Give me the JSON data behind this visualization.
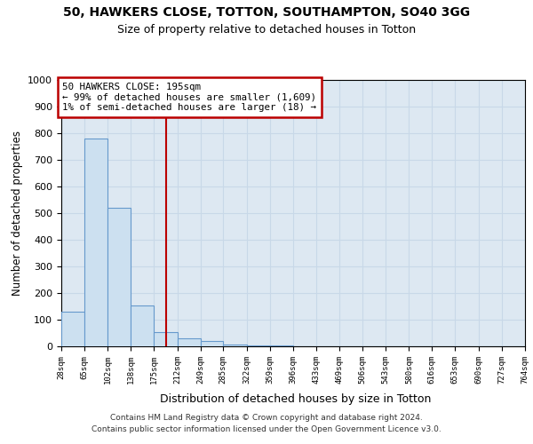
{
  "title1": "50, HAWKERS CLOSE, TOTTON, SOUTHAMPTON, SO40 3GG",
  "title2": "Size of property relative to detached houses in Totton",
  "xlabel": "Distribution of detached houses by size in Totton",
  "ylabel": "Number of detached properties",
  "footnote": "Contains HM Land Registry data © Crown copyright and database right 2024.\nContains public sector information licensed under the Open Government Licence v3.0.",
  "annotation_title": "50 HAWKERS CLOSE: 195sqm",
  "annotation_line1": "← 99% of detached houses are smaller (1,609)",
  "annotation_line2": "1% of semi-detached houses are larger (18) →",
  "property_size": 195,
  "bin_edges": [
    28,
    65,
    102,
    138,
    175,
    212,
    249,
    285,
    322,
    359,
    396,
    433,
    469,
    506,
    543,
    580,
    616,
    653,
    690,
    727,
    764
  ],
  "bin_counts": [
    130,
    780,
    520,
    155,
    55,
    30,
    20,
    8,
    4,
    2,
    1,
    1,
    0,
    0,
    0,
    0,
    0,
    0,
    0,
    0
  ],
  "bar_color": "#cce0f0",
  "bar_edge_color": "#6699cc",
  "vline_color": "#bb0000",
  "annotation_box_color": "#bb0000",
  "grid_color": "#c8d8e8",
  "background_color": "#dde8f2",
  "ylim": [
    0,
    1000
  ],
  "yticks": [
    0,
    100,
    200,
    300,
    400,
    500,
    600,
    700,
    800,
    900,
    1000
  ]
}
